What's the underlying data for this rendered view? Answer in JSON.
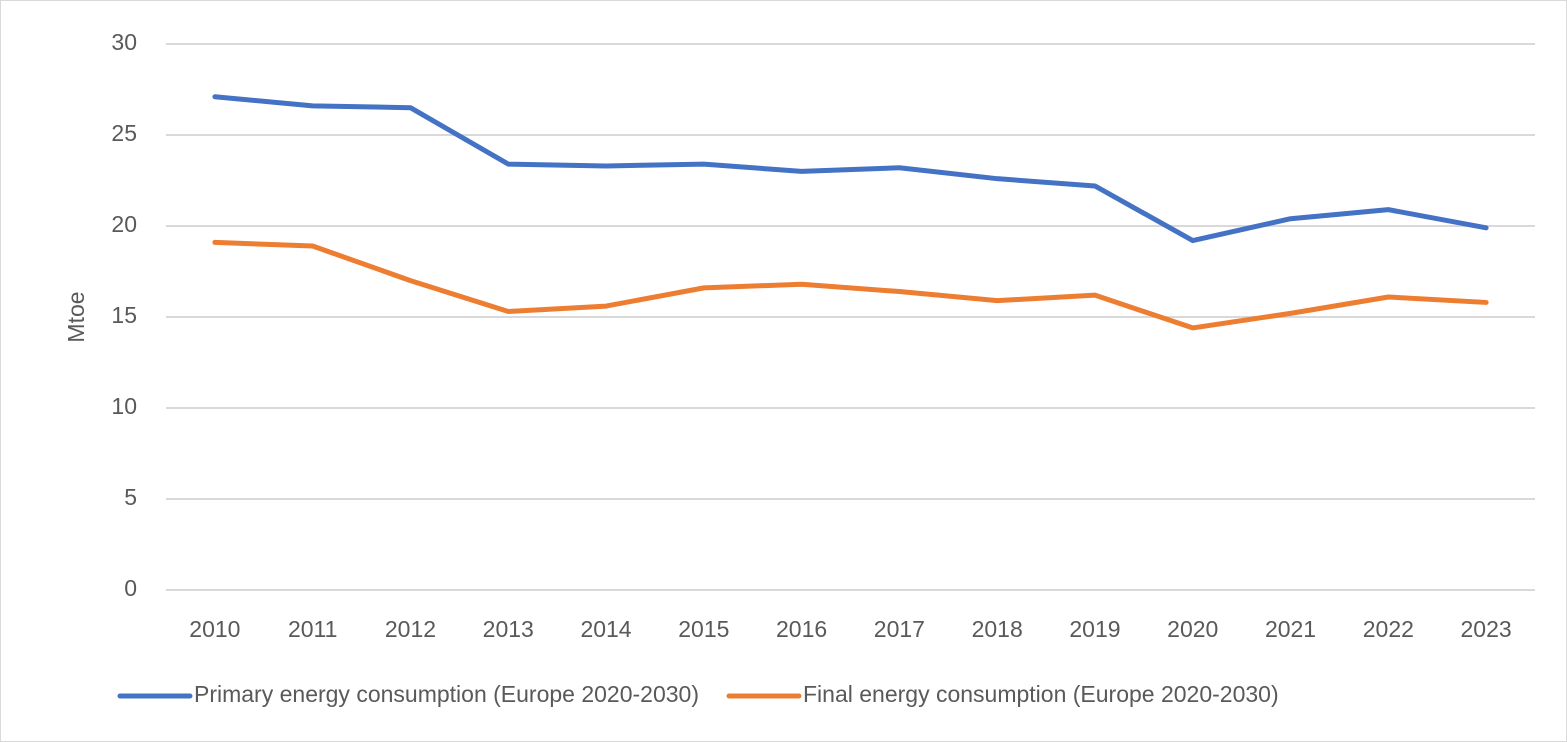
{
  "chart_data": {
    "type": "line",
    "y_label": "Mtoe",
    "categories": [
      "2010",
      "2011",
      "2012",
      "2013",
      "2014",
      "2015",
      "2016",
      "2017",
      "2018",
      "2019",
      "2020",
      "2021",
      "2022",
      "2023"
    ],
    "series": [
      {
        "name": "Primary energy consumption (Europe 2020-2030)",
        "color": "#4472c4",
        "values": [
          27.1,
          26.6,
          26.5,
          23.4,
          23.3,
          23.4,
          23.0,
          23.2,
          22.6,
          22.2,
          19.2,
          20.4,
          20.9,
          19.9
        ]
      },
      {
        "name": "Final energy consumption (Europe 2020-2030)",
        "color": "#ed7d31",
        "values": [
          19.1,
          18.9,
          17.0,
          15.3,
          15.6,
          16.6,
          16.8,
          16.4,
          15.9,
          16.2,
          14.4,
          15.2,
          16.1,
          15.8
        ]
      }
    ],
    "ylim": [
      0,
      30
    ],
    "yticks": [
      0,
      5,
      10,
      15,
      20,
      25,
      30
    ],
    "grid": true,
    "legend": "bottom"
  }
}
